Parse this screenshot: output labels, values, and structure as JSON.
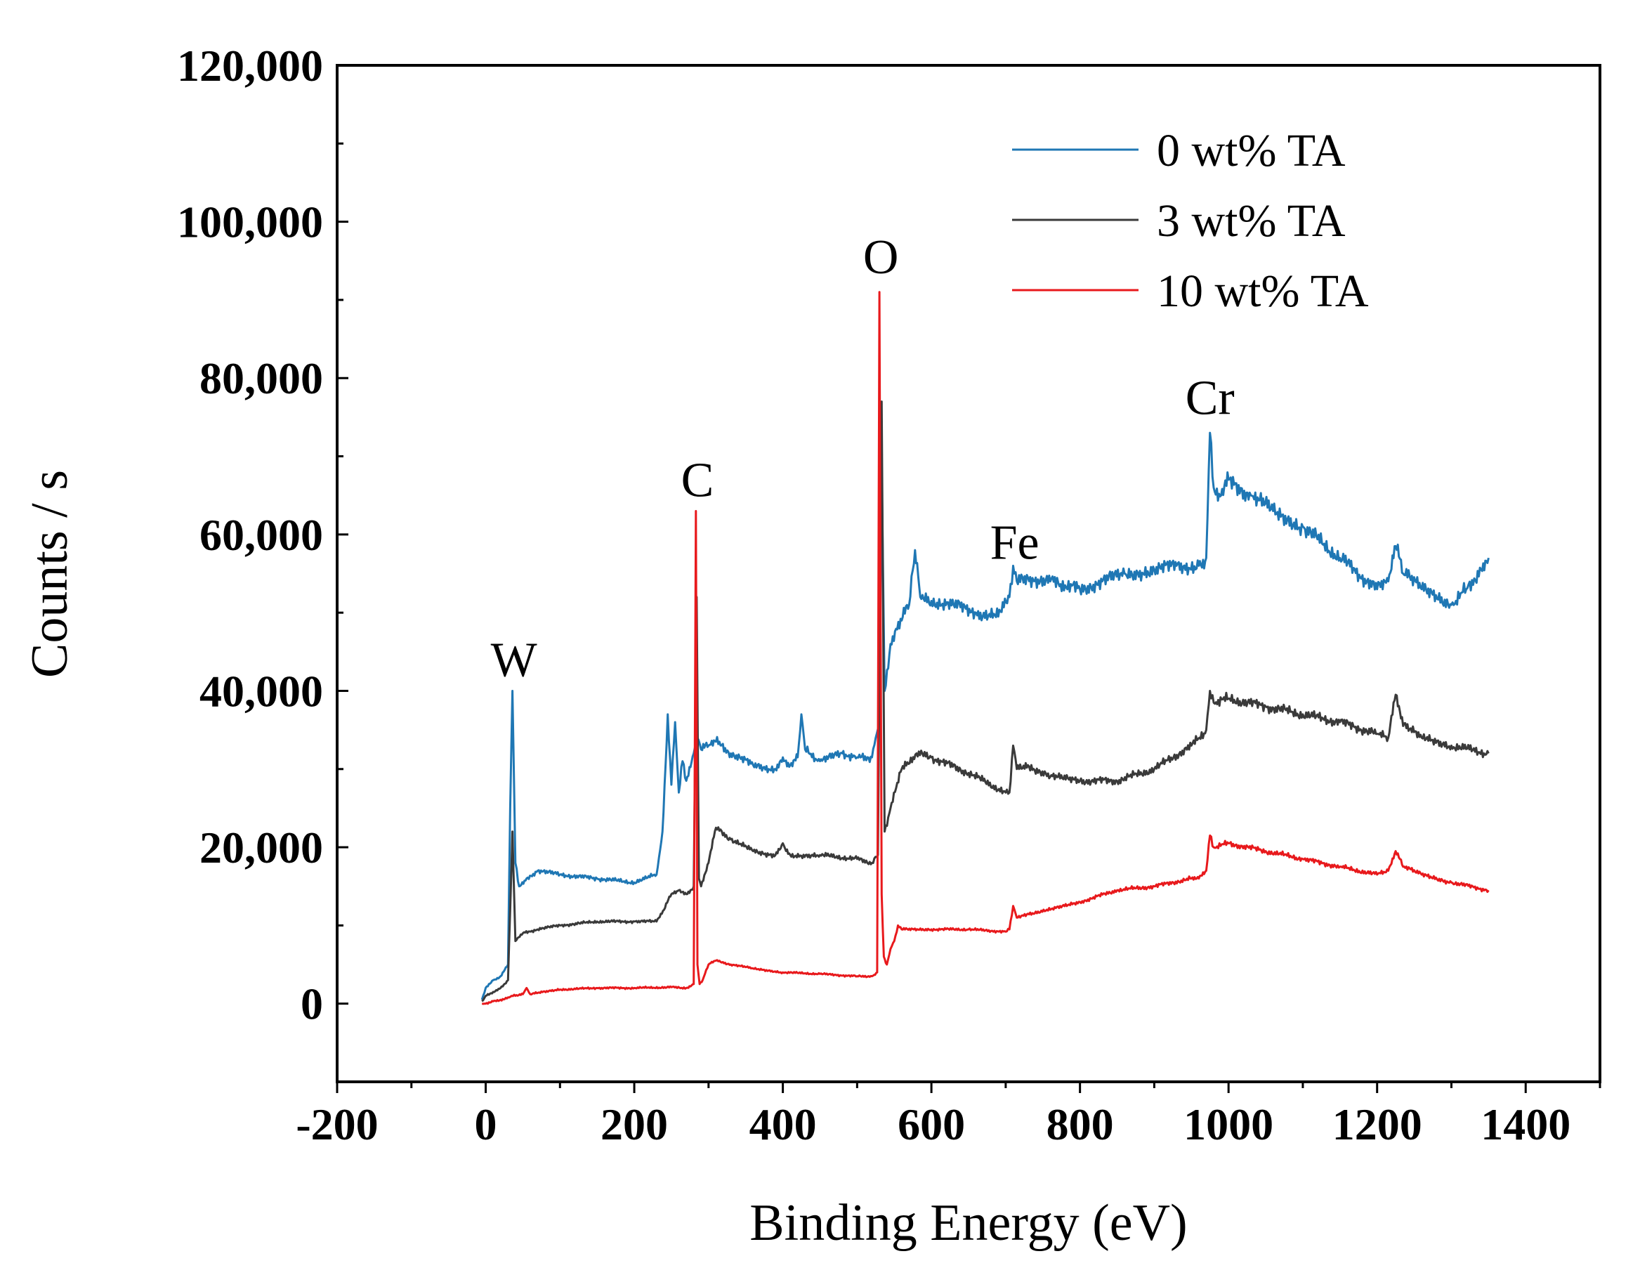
{
  "chart_data": {
    "type": "line",
    "title": "",
    "xlabel": "Binding Energy (eV)",
    "ylabel": "Counts / s",
    "xlim": [
      -200,
      1500
    ],
    "ylim": [
      -10000,
      120000
    ],
    "xticks": [
      -200,
      0,
      200,
      400,
      600,
      800,
      1000,
      1200,
      1400
    ],
    "xtick_labels": [
      "-200",
      "0",
      "200",
      "400",
      "600",
      "800",
      "1000",
      "1200",
      "1400"
    ],
    "yticks": [
      0,
      20000,
      40000,
      60000,
      80000,
      100000,
      120000
    ],
    "ytick_labels": [
      "0",
      "20,000",
      "40,000",
      "60,000",
      "80,000",
      "100,000",
      "120,000"
    ],
    "grid": false,
    "legend_position": "top-right",
    "series": [
      {
        "name": "0 wt% TA",
        "color": "#1f77b4",
        "x": [
          -5,
          0,
          10,
          20,
          30,
          33,
          36,
          40,
          45,
          55,
          70,
          100,
          150,
          200,
          230,
          238,
          245,
          250,
          255,
          260,
          265,
          270,
          280,
          285,
          290,
          300,
          310,
          330,
          360,
          390,
          400,
          410,
          420,
          425,
          430,
          450,
          480,
          500,
          520,
          525,
          530,
          533,
          537,
          545,
          560,
          570,
          578,
          585,
          600,
          630,
          660,
          690,
          705,
          710,
          715,
          730,
          760,
          780,
          800,
          830,
          860,
          900,
          930,
          960,
          970,
          975,
          980,
          990,
          1000,
          1030,
          1060,
          1100,
          1150,
          1200,
          1215,
          1225,
          1235,
          1260,
          1300,
          1320,
          1340,
          1350
        ],
        "y": [
          500,
          2000,
          3000,
          3500,
          5000,
          25000,
          40000,
          18000,
          15000,
          16000,
          17000,
          16500,
          16000,
          15500,
          16500,
          22000,
          37000,
          28000,
          36000,
          27000,
          31000,
          28500,
          32000,
          34000,
          32500,
          33000,
          33500,
          32000,
          30500,
          30000,
          31500,
          30500,
          31500,
          37000,
          32500,
          31000,
          32000,
          31500,
          31500,
          34000,
          36000,
          70000,
          40000,
          46000,
          49000,
          51000,
          58000,
          52000,
          51500,
          51000,
          50000,
          49500,
          52000,
          56000,
          54000,
          54500,
          54000,
          53500,
          53000,
          54000,
          55000,
          55500,
          56000,
          56000,
          57000,
          73000,
          66000,
          65000,
          67000,
          65000,
          63000,
          61000,
          57000,
          53000,
          54000,
          58500,
          55000,
          53000,
          51000,
          53000,
          55500,
          57000
        ]
      },
      {
        "name": "3 wt% TA",
        "color": "#3a3a3a",
        "x": [
          -5,
          0,
          10,
          20,
          30,
          33,
          36,
          40,
          50,
          70,
          100,
          150,
          200,
          230,
          240,
          250,
          260,
          270,
          280,
          284,
          287,
          290,
          300,
          310,
          330,
          360,
          390,
          400,
          410,
          450,
          500,
          520,
          528,
          533,
          537,
          545,
          560,
          580,
          600,
          650,
          700,
          705,
          710,
          715,
          730,
          760,
          800,
          850,
          900,
          950,
          970,
          975,
          980,
          1000,
          1050,
          1100,
          1150,
          1200,
          1215,
          1225,
          1235,
          1260,
          1300,
          1350
        ],
        "y": [
          300,
          1000,
          1500,
          2000,
          3000,
          12000,
          22000,
          8000,
          9000,
          9500,
          10000,
          10500,
          10500,
          10500,
          12000,
          14000,
          14500,
          14000,
          15000,
          52000,
          16000,
          15000,
          18000,
          22500,
          21000,
          19500,
          19000,
          20500,
          19000,
          19000,
          18500,
          18000,
          19000,
          77000,
          22000,
          25000,
          30000,
          32000,
          31500,
          29500,
          27000,
          27000,
          33000,
          30000,
          30500,
          29000,
          28500,
          28500,
          30000,
          33000,
          35000,
          40000,
          38500,
          39000,
          38000,
          37000,
          36000,
          34500,
          34000,
          39500,
          35500,
          34000,
          33000,
          32000
        ]
      },
      {
        "name": "10 wt% TA",
        "color": "#e8191c",
        "x": [
          -5,
          0,
          10,
          20,
          30,
          35,
          40,
          50,
          55,
          60,
          100,
          150,
          200,
          250,
          270,
          280,
          283,
          285,
          288,
          292,
          300,
          310,
          330,
          360,
          400,
          450,
          500,
          520,
          527,
          530,
          533,
          536,
          540,
          545,
          550,
          555,
          560,
          600,
          650,
          700,
          705,
          710,
          715,
          730,
          760,
          800,
          850,
          900,
          950,
          960,
          970,
          975,
          980,
          1000,
          1050,
          1100,
          1150,
          1200,
          1215,
          1225,
          1235,
          1260,
          1300,
          1350
        ],
        "y": [
          0,
          0,
          300,
          500,
          800,
          1000,
          1000,
          1200,
          2000,
          1200,
          1800,
          2000,
          2000,
          2100,
          2000,
          2500,
          63000,
          5000,
          2500,
          3000,
          5000,
          5500,
          5000,
          4500,
          4000,
          3800,
          3500,
          3500,
          4000,
          91000,
          14000,
          6000,
          5000,
          7000,
          8000,
          10000,
          9500,
          9500,
          9500,
          9200,
          9500,
          12500,
          11000,
          11500,
          12000,
          13000,
          14500,
          15000,
          16000,
          16000,
          17000,
          21500,
          20000,
          20500,
          19500,
          18500,
          17500,
          16500,
          17000,
          19500,
          17500,
          16500,
          15500,
          14500
        ]
      }
    ],
    "annotations": [
      {
        "text": "W",
        "x": 38,
        "y": 41000
      },
      {
        "text": "C",
        "x": 285,
        "y": 64000
      },
      {
        "text": "O",
        "x": 532,
        "y": 92500
      },
      {
        "text": "Fe",
        "x": 712,
        "y": 56000
      },
      {
        "text": "Cr",
        "x": 975,
        "y": 74500
      }
    ]
  }
}
